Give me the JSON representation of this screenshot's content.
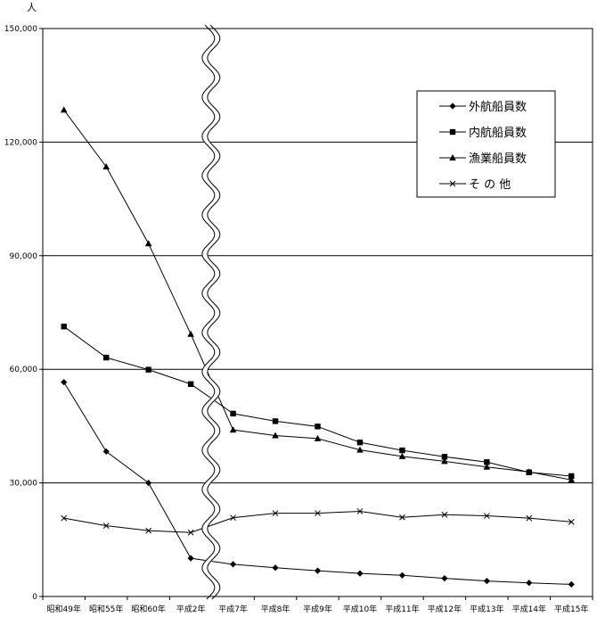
{
  "chart_data": {
    "type": "line",
    "unit_label": "人",
    "categories": [
      "昭和49年",
      "昭和55年",
      "昭和60年",
      "平成2年",
      "平成7年",
      "平成8年",
      "平成9年",
      "平成10年",
      "平成11年",
      "平成12年",
      "平成13年",
      "平成14年",
      "平成15年"
    ],
    "ylim": [
      0,
      150000
    ],
    "yticks": [
      0,
      30000,
      60000,
      90000,
      120000,
      150000
    ],
    "ytick_labels": [
      "0",
      "30,000",
      "60,000",
      "90,000",
      "120,000",
      "150,000"
    ],
    "grid": true,
    "axis_break_between": [
      "平成2年",
      "平成7年"
    ],
    "legend_position": "top-right",
    "series": [
      {
        "name": "外航船員数",
        "marker": "diamond",
        "values": [
          56600,
          38300,
          30000,
          10100,
          8500,
          7600,
          6800,
          6100,
          5600,
          4800,
          4100,
          3600,
          3200
        ]
      },
      {
        "name": "内航船員数",
        "marker": "square",
        "values": [
          71300,
          63100,
          59900,
          56100,
          48300,
          46300,
          44900,
          40700,
          38600,
          36900,
          35500,
          32800,
          31800
        ]
      },
      {
        "name": "漁業船員数",
        "marker": "triangle",
        "values": [
          128500,
          113500,
          93200,
          69300,
          44000,
          42500,
          41700,
          38700,
          37000,
          35700,
          34200,
          32900,
          30800
        ]
      },
      {
        "name": "そ の 他",
        "marker": "x",
        "values": [
          20700,
          18700,
          17400,
          16900,
          20800,
          22000,
          22000,
          22500,
          20900,
          21600,
          21300,
          20700,
          19700
        ]
      }
    ]
  }
}
